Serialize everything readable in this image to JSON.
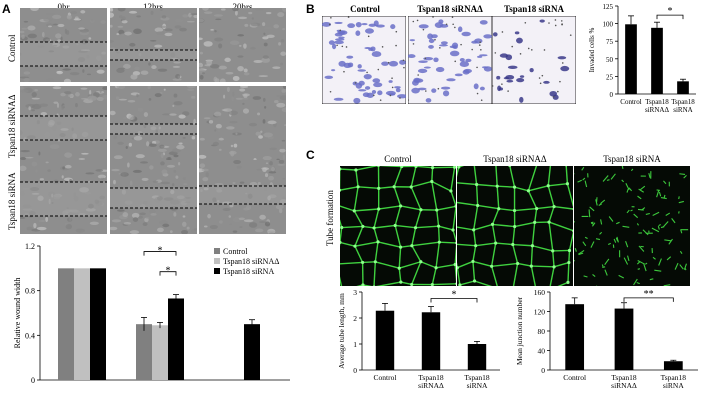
{
  "panels": {
    "A": {
      "letter": "A",
      "timepoints": [
        "0hr",
        "12hrs",
        "20hrs"
      ],
      "rows": [
        "Control",
        "Tspan18 siRNAΔ",
        "Tspan18 siRNA"
      ]
    },
    "B": {
      "letter": "B",
      "image_labels": [
        "Control",
        "Tspan18 siRNAΔ",
        "Tspan18 siRNA"
      ]
    },
    "C": {
      "letter": "C",
      "image_labels": [
        "Control",
        "Tspan18 siRNAΔ",
        "Tspan18 siRNA"
      ],
      "row_label": "Tube formation"
    }
  },
  "chart_data": [
    {
      "id": "wound",
      "type": "bar",
      "title": "",
      "xlabel": "",
      "ylabel": "Relative wound width",
      "ylim": [
        0,
        1.2
      ],
      "yticks": [
        "0",
        "0.4",
        "0.8",
        "1.2"
      ],
      "categories": [
        "",
        "",
        ""
      ],
      "series": [
        {
          "name": "Control",
          "values": [
            1.0,
            0.5,
            null
          ],
          "errors": [
            0,
            0.06,
            0
          ],
          "color": "#808080"
        },
        {
          "name": "Tspan18 siRNAΔ",
          "values": [
            1.0,
            0.49,
            null
          ],
          "errors": [
            0,
            0.025,
            0
          ],
          "color": "#c0c0c0"
        },
        {
          "name": "Tspan18 siRNA",
          "values": [
            1.0,
            0.73,
            0.5
          ],
          "errors": [
            0,
            0.035,
            0.04
          ],
          "color": "#000000"
        }
      ],
      "significance": [
        "*",
        "*"
      ],
      "legend": "top-right",
      "grid": false
    },
    {
      "id": "invasion",
      "type": "bar",
      "title": "",
      "xlabel": "",
      "ylabel": "Invaded cells %",
      "ylim": [
        0,
        125
      ],
      "yticks": [
        "0",
        "25",
        "50",
        "75",
        "100",
        "125"
      ],
      "categories": [
        "Control",
        "Tspan18 siRNAΔ",
        "Tspan18 siRNA"
      ],
      "values": [
        99,
        94,
        18
      ],
      "errors": [
        12,
        8,
        3
      ],
      "significance": [
        "*"
      ],
      "grid": false
    },
    {
      "id": "tube_length",
      "type": "bar",
      "title": "",
      "xlabel": "",
      "ylabel": "Average tube length, mm",
      "ylim": [
        0,
        3
      ],
      "yticks": [
        "0",
        "1",
        "2",
        "3"
      ],
      "categories": [
        "Control",
        "Tspan18 siRNAΔ",
        "Tspan18 siRNA"
      ],
      "values": [
        2.28,
        2.22,
        1.0
      ],
      "errors": [
        0.28,
        0.22,
        0.1
      ],
      "significance": [
        "*"
      ],
      "grid": false
    },
    {
      "id": "junctions",
      "type": "bar",
      "title": "",
      "xlabel": "",
      "ylabel": "Mean junction number",
      "ylim": [
        0,
        160
      ],
      "yticks": [
        "0",
        "40",
        "80",
        "120",
        "160"
      ],
      "categories": [
        "Control",
        "Tspan18 siRNAΔ",
        "Tspan18 siRNA"
      ],
      "values": [
        135,
        126,
        18
      ],
      "errors": [
        13,
        12,
        2
      ],
      "significance": [
        "**"
      ],
      "grid": false
    }
  ]
}
